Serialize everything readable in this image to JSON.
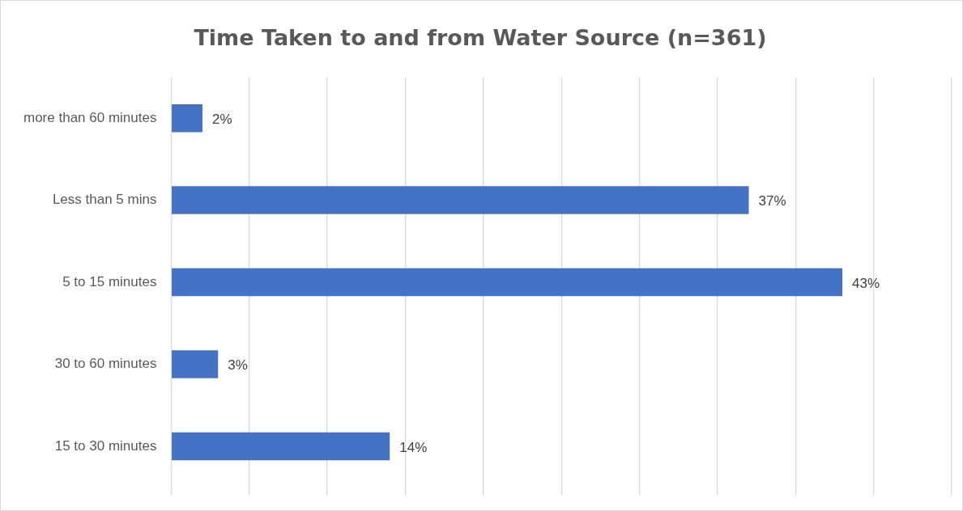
{
  "chart_data": {
    "type": "bar",
    "orientation": "horizontal",
    "title": "Time Taken to and from Water Source (n=361)",
    "categories": [
      "more than 60 minutes",
      "Less than 5 mins",
      "5 to 15 minutes",
      "30 to 60 minutes",
      "15 to 30 minutes"
    ],
    "values": [
      2,
      37,
      43,
      3,
      14
    ],
    "value_labels": [
      "2%",
      "37%",
      "43%",
      "3%",
      "14%"
    ],
    "color": "#4472c4",
    "xlim": [
      0,
      50
    ],
    "xticks": [
      {
        "value": 0,
        "label": null
      },
      {
        "value": 5,
        "label": null
      },
      {
        "value": 10,
        "label": null
      },
      {
        "value": 15,
        "label": null
      },
      {
        "value": 20,
        "label": null
      },
      {
        "value": 25,
        "label": null
      },
      {
        "value": 30,
        "label": null
      },
      {
        "value": 35,
        "label": null
      },
      {
        "value": 40,
        "label": null
      },
      {
        "value": 45,
        "label": null
      },
      {
        "value": 50,
        "label": null
      }
    ],
    "tick_labels": "y",
    "grid": "x",
    "legend": false
  }
}
